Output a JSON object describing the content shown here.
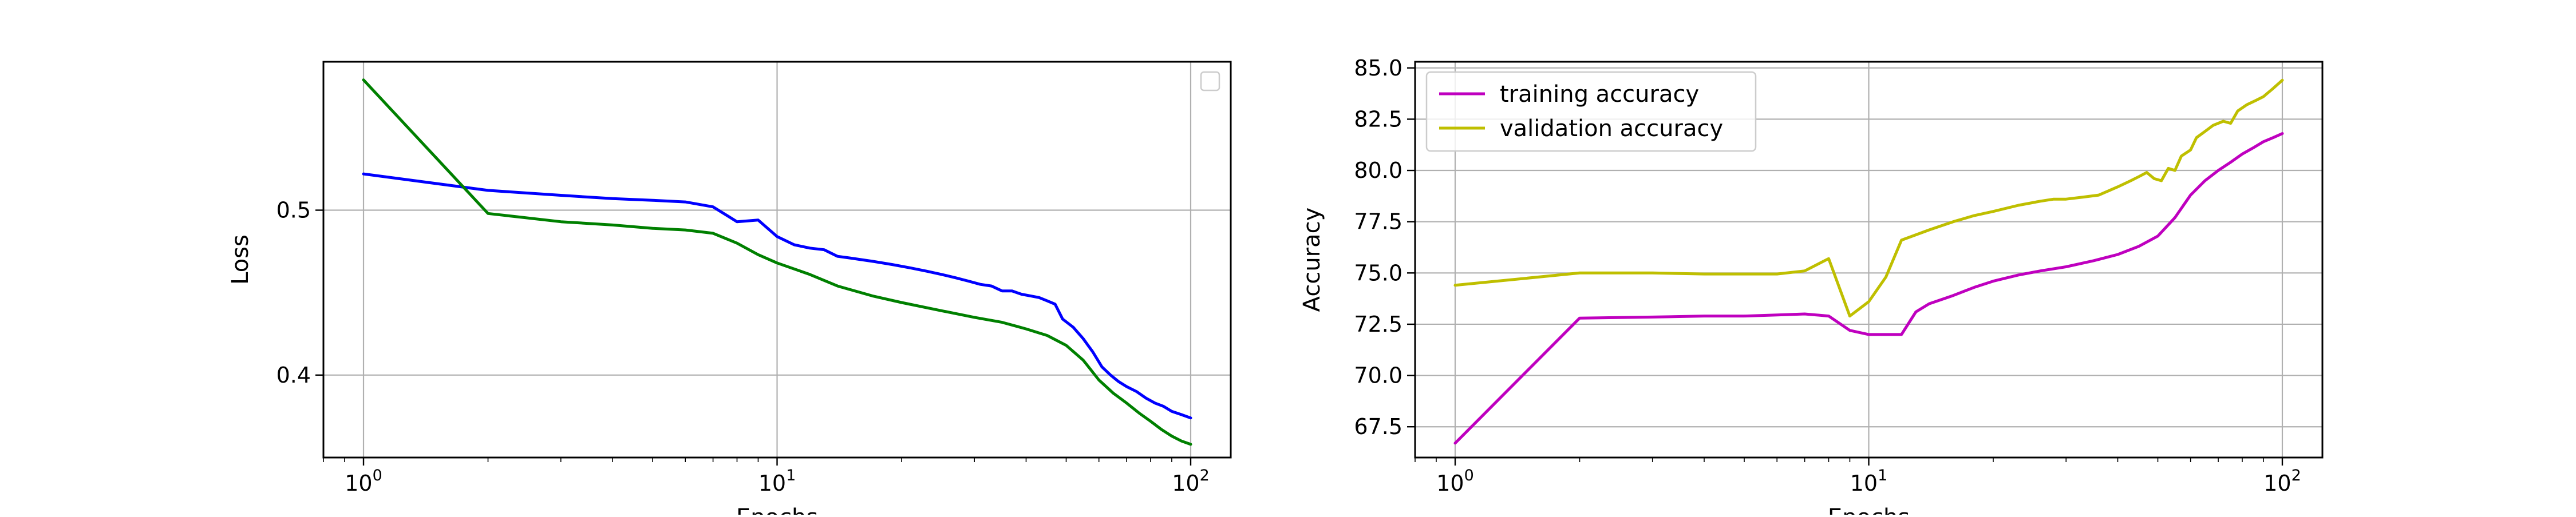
{
  "chart_data": [
    {
      "type": "line",
      "title": "",
      "xlabel": "Epochs",
      "ylabel": "Loss",
      "xscale": "log",
      "xlim": [
        0.8,
        125
      ],
      "ylim": [
        0.35,
        0.59
      ],
      "grid": true,
      "legend": {
        "placement": "top-right",
        "entries": []
      },
      "x_ticks": [
        {
          "value": 1,
          "base": "10",
          "exp": "0"
        },
        {
          "value": 10,
          "base": "10",
          "exp": "1"
        },
        {
          "value": 100,
          "base": "10",
          "exp": "2"
        }
      ],
      "y_ticks": [
        {
          "value": 0.4,
          "label": "0.4"
        },
        {
          "value": 0.5,
          "label": "0.5"
        }
      ],
      "series": [
        {
          "color": "#0000ff",
          "points": [
            [
              1,
              0.522
            ],
            [
              2,
              0.512
            ],
            [
              3,
              0.509
            ],
            [
              4,
              0.507
            ],
            [
              5,
              0.506
            ],
            [
              6,
              0.505
            ],
            [
              7,
              0.502
            ],
            [
              8,
              0.493
            ],
            [
              9,
              0.494
            ],
            [
              10,
              0.484
            ],
            [
              11,
              0.479
            ],
            [
              12,
              0.477
            ],
            [
              13,
              0.476
            ],
            [
              14,
              0.472
            ],
            [
              15,
              0.471
            ],
            [
              17,
              0.469
            ],
            [
              19,
              0.467
            ],
            [
              21,
              0.465
            ],
            [
              23,
              0.463
            ],
            [
              25,
              0.461
            ],
            [
              27,
              0.459
            ],
            [
              29,
              0.457
            ],
            [
              31,
              0.455
            ],
            [
              33,
              0.454
            ],
            [
              35,
              0.451
            ],
            [
              37,
              0.451
            ],
            [
              39,
              0.449
            ],
            [
              41,
              0.448
            ],
            [
              43,
              0.447
            ],
            [
              45,
              0.445
            ],
            [
              47,
              0.443
            ],
            [
              49,
              0.434
            ],
            [
              52,
              0.429
            ],
            [
              55,
              0.422
            ],
            [
              58,
              0.414
            ],
            [
              61,
              0.405
            ],
            [
              64,
              0.4
            ],
            [
              67,
              0.396
            ],
            [
              70,
              0.393
            ],
            [
              74,
              0.39
            ],
            [
              78,
              0.386
            ],
            [
              82,
              0.383
            ],
            [
              86,
              0.381
            ],
            [
              90,
              0.378
            ],
            [
              95,
              0.376
            ],
            [
              100,
              0.374
            ]
          ]
        },
        {
          "color": "#008000",
          "points": [
            [
              1,
              0.579
            ],
            [
              2,
              0.498
            ],
            [
              3,
              0.493
            ],
            [
              4,
              0.491
            ],
            [
              5,
              0.489
            ],
            [
              6,
              0.488
            ],
            [
              7,
              0.486
            ],
            [
              8,
              0.48
            ],
            [
              9,
              0.473
            ],
            [
              10,
              0.468
            ],
            [
              12,
              0.461
            ],
            [
              14,
              0.454
            ],
            [
              17,
              0.448
            ],
            [
              20,
              0.444
            ],
            [
              25,
              0.439
            ],
            [
              30,
              0.435
            ],
            [
              35,
              0.432
            ],
            [
              40,
              0.428
            ],
            [
              45,
              0.424
            ],
            [
              50,
              0.418
            ],
            [
              55,
              0.409
            ],
            [
              60,
              0.397
            ],
            [
              65,
              0.389
            ],
            [
              70,
              0.383
            ],
            [
              75,
              0.377
            ],
            [
              80,
              0.372
            ],
            [
              85,
              0.367
            ],
            [
              90,
              0.363
            ],
            [
              95,
              0.36
            ],
            [
              100,
              0.358
            ]
          ]
        }
      ]
    },
    {
      "type": "line",
      "title": "",
      "xlabel": "Epochs",
      "ylabel": "Accuracy",
      "xscale": "log",
      "xlim": [
        0.8,
        125
      ],
      "ylim": [
        66,
        85.3
      ],
      "grid": true,
      "legend": {
        "placement": "top-left",
        "entries": [
          "training accuracy",
          "validation accuracy"
        ]
      },
      "x_ticks": [
        {
          "value": 1,
          "base": "10",
          "exp": "0"
        },
        {
          "value": 10,
          "base": "10",
          "exp": "1"
        },
        {
          "value": 100,
          "base": "10",
          "exp": "2"
        }
      ],
      "y_ticks": [
        {
          "value": 67.5,
          "label": "67.5"
        },
        {
          "value": 70.0,
          "label": "70.0"
        },
        {
          "value": 72.5,
          "label": "72.5"
        },
        {
          "value": 75.0,
          "label": "75.0"
        },
        {
          "value": 77.5,
          "label": "77.5"
        },
        {
          "value": 80.0,
          "label": "80.0"
        },
        {
          "value": 82.5,
          "label": "82.5"
        },
        {
          "value": 85.0,
          "label": "85.0"
        }
      ],
      "series": [
        {
          "name": "training accuracy",
          "color": "#bf00bf",
          "points": [
            [
              1,
              66.7
            ],
            [
              2,
              72.8
            ],
            [
              3,
              72.85
            ],
            [
              4,
              72.9
            ],
            [
              5,
              72.9
            ],
            [
              6,
              72.95
            ],
            [
              7,
              73.0
            ],
            [
              8,
              72.9
            ],
            [
              9,
              72.2
            ],
            [
              10,
              72.0
            ],
            [
              11,
              72.0
            ],
            [
              12,
              72.0
            ],
            [
              13,
              73.1
            ],
            [
              14,
              73.5
            ],
            [
              16,
              73.9
            ],
            [
              18,
              74.3
            ],
            [
              20,
              74.6
            ],
            [
              23,
              74.9
            ],
            [
              26,
              75.1
            ],
            [
              30,
              75.3
            ],
            [
              35,
              75.6
            ],
            [
              40,
              75.9
            ],
            [
              45,
              76.3
            ],
            [
              50,
              76.8
            ],
            [
              55,
              77.7
            ],
            [
              60,
              78.8
            ],
            [
              65,
              79.5
            ],
            [
              70,
              80.0
            ],
            [
              75,
              80.4
            ],
            [
              80,
              80.8
            ],
            [
              85,
              81.1
            ],
            [
              90,
              81.4
            ],
            [
              95,
              81.6
            ],
            [
              100,
              81.8
            ]
          ]
        },
        {
          "name": "validation accuracy",
          "color": "#bfbf00",
          "points": [
            [
              1,
              74.4
            ],
            [
              2,
              75.0
            ],
            [
              3,
              75.0
            ],
            [
              4,
              74.95
            ],
            [
              5,
              74.95
            ],
            [
              6,
              74.95
            ],
            [
              7,
              75.1
            ],
            [
              8,
              75.7
            ],
            [
              9,
              72.9
            ],
            [
              10,
              73.6
            ],
            [
              11,
              74.8
            ],
            [
              12,
              76.6
            ],
            [
              14,
              77.1
            ],
            [
              16,
              77.5
            ],
            [
              18,
              77.8
            ],
            [
              20,
              78.0
            ],
            [
              23,
              78.3
            ],
            [
              26,
              78.5
            ],
            [
              28,
              78.6
            ],
            [
              30,
              78.6
            ],
            [
              33,
              78.7
            ],
            [
              36,
              78.8
            ],
            [
              40,
              79.2
            ],
            [
              43,
              79.5
            ],
            [
              45,
              79.7
            ],
            [
              47,
              79.9
            ],
            [
              49,
              79.6
            ],
            [
              51,
              79.5
            ],
            [
              53,
              80.1
            ],
            [
              55,
              80.0
            ],
            [
              57,
              80.7
            ],
            [
              60,
              81.0
            ],
            [
              62,
              81.6
            ],
            [
              65,
              81.9
            ],
            [
              68,
              82.2
            ],
            [
              72,
              82.4
            ],
            [
              75,
              82.3
            ],
            [
              78,
              82.9
            ],
            [
              82,
              83.2
            ],
            [
              86,
              83.4
            ],
            [
              90,
              83.6
            ],
            [
              95,
              84.0
            ],
            [
              100,
              84.4
            ]
          ]
        }
      ]
    }
  ]
}
